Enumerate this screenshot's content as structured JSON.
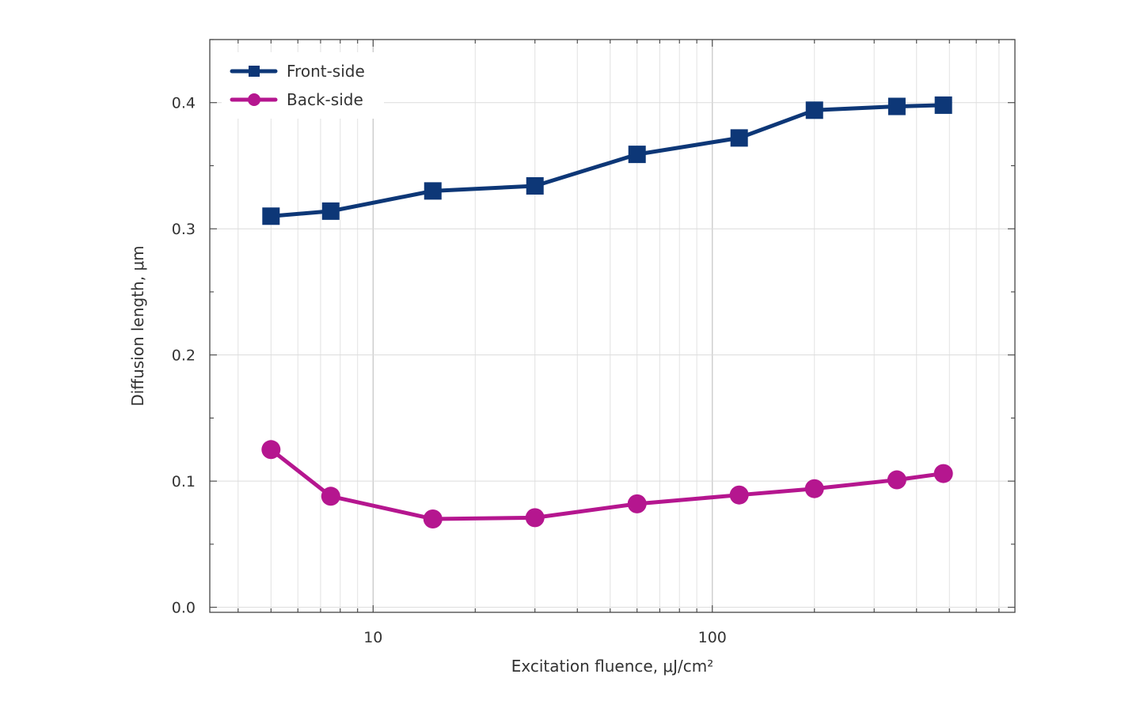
{
  "chart_data": {
    "type": "line",
    "title": "",
    "xlabel": "Excitation fluence, μJ/cm²",
    "ylabel": "Diffusion length, μm",
    "x_scale": "log",
    "xlim": [
      3.3,
      780
    ],
    "ylim": [
      -0.004,
      0.45
    ],
    "x_ticks": [
      10,
      100
    ],
    "x_tick_labels": [
      "10",
      "100"
    ],
    "y_ticks": [
      0.0,
      0.1,
      0.2,
      0.3,
      0.4
    ],
    "y_tick_labels": [
      "0.0",
      "0.1",
      "0.2",
      "0.3",
      "0.4"
    ],
    "grid": true,
    "legend_position": "top-left",
    "x": [
      5,
      7.5,
      15,
      30,
      60,
      120,
      200,
      350,
      480
    ],
    "series": [
      {
        "name": "Front-side",
        "marker": "square",
        "color": "#0d3777",
        "values": [
          0.31,
          0.314,
          0.33,
          0.334,
          0.359,
          0.372,
          0.394,
          0.397,
          0.398
        ]
      },
      {
        "name": "Back-side",
        "marker": "circle",
        "color": "#b5168f",
        "values": [
          0.125,
          0.088,
          0.07,
          0.071,
          0.082,
          0.089,
          0.094,
          0.101,
          0.106
        ]
      }
    ]
  }
}
